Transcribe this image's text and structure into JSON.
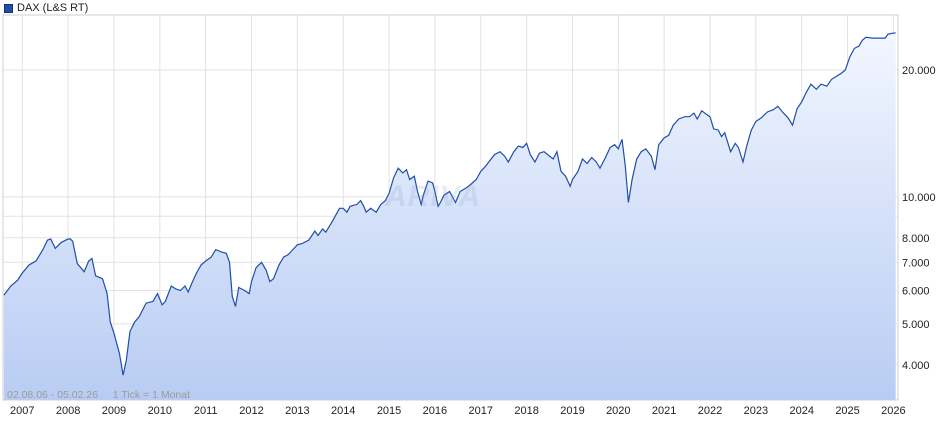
{
  "legend": {
    "label": "DAX (L&S RT)",
    "color": "#1f4fa8"
  },
  "footer": {
    "range_text": "02.08.06 - 05.02.26",
    "tick_text": "1 Tick = 1 Monat"
  },
  "watermark": "ARIVA",
  "colors": {
    "line": "#1f4fa8",
    "fill_top": "#f2f6ff",
    "fill_bottom": "#b8ccf3",
    "grid": "#e2e2e2"
  },
  "chart_data": {
    "type": "area",
    "scale": "log",
    "grid": true,
    "legend_position": "top-left",
    "x_ticks": [
      "2007",
      "2008",
      "2009",
      "2010",
      "2011",
      "2012",
      "2013",
      "2014",
      "2015",
      "2016",
      "2017",
      "2018",
      "2019",
      "2020",
      "2021",
      "2022",
      "2023",
      "2024",
      "2025",
      "2026"
    ],
    "y_ticks": [
      {
        "value": 4000,
        "label": "4.000"
      },
      {
        "value": 5000,
        "label": "5.000"
      },
      {
        "value": 6000,
        "label": "6.000"
      },
      {
        "value": 7000,
        "label": "7.000"
      },
      {
        "value": 8000,
        "label": "8.000"
      },
      {
        "value": 9000,
        "label": ""
      },
      {
        "value": 10000,
        "label": "10.000"
      },
      {
        "value": 20000,
        "label": "20.000"
      }
    ],
    "ylim": [
      3300,
      27000
    ],
    "xlim": [
      2006.58,
      2026.1
    ],
    "series": [
      {
        "name": "DAX (L&S RT)",
        "points": [
          [
            2006.6,
            5850
          ],
          [
            2006.75,
            6150
          ],
          [
            2006.9,
            6350
          ],
          [
            2007.0,
            6600
          ],
          [
            2007.15,
            6900
          ],
          [
            2007.3,
            7050
          ],
          [
            2007.45,
            7500
          ],
          [
            2007.55,
            7900
          ],
          [
            2007.62,
            7950
          ],
          [
            2007.72,
            7550
          ],
          [
            2007.85,
            7800
          ],
          [
            2008.0,
            7950
          ],
          [
            2008.05,
            7950
          ],
          [
            2008.1,
            7850
          ],
          [
            2008.2,
            6950
          ],
          [
            2008.35,
            6650
          ],
          [
            2008.45,
            7050
          ],
          [
            2008.52,
            7150
          ],
          [
            2008.6,
            6500
          ],
          [
            2008.75,
            6400
          ],
          [
            2008.85,
            5900
          ],
          [
            2008.92,
            5050
          ],
          [
            2009.0,
            4750
          ],
          [
            2009.12,
            4250
          ],
          [
            2009.2,
            3780
          ],
          [
            2009.27,
            4100
          ],
          [
            2009.35,
            4800
          ],
          [
            2009.45,
            5050
          ],
          [
            2009.55,
            5200
          ],
          [
            2009.7,
            5600
          ],
          [
            2009.85,
            5650
          ],
          [
            2009.95,
            5900
          ],
          [
            2010.05,
            5550
          ],
          [
            2010.12,
            5650
          ],
          [
            2010.25,
            6150
          ],
          [
            2010.35,
            6050
          ],
          [
            2010.45,
            6000
          ],
          [
            2010.55,
            6150
          ],
          [
            2010.62,
            5950
          ],
          [
            2010.7,
            6250
          ],
          [
            2010.8,
            6600
          ],
          [
            2010.9,
            6900
          ],
          [
            2011.0,
            7050
          ],
          [
            2011.12,
            7200
          ],
          [
            2011.22,
            7500
          ],
          [
            2011.35,
            7400
          ],
          [
            2011.45,
            7350
          ],
          [
            2011.52,
            7000
          ],
          [
            2011.58,
            5800
          ],
          [
            2011.65,
            5500
          ],
          [
            2011.72,
            6100
          ],
          [
            2011.85,
            6000
          ],
          [
            2011.95,
            5900
          ],
          [
            2012.0,
            6300
          ],
          [
            2012.1,
            6800
          ],
          [
            2012.22,
            7000
          ],
          [
            2012.32,
            6700
          ],
          [
            2012.4,
            6300
          ],
          [
            2012.48,
            6400
          ],
          [
            2012.6,
            6900
          ],
          [
            2012.7,
            7200
          ],
          [
            2012.8,
            7300
          ],
          [
            2012.9,
            7500
          ],
          [
            2013.0,
            7700
          ],
          [
            2013.1,
            7750
          ],
          [
            2013.25,
            7900
          ],
          [
            2013.38,
            8300
          ],
          [
            2013.45,
            8100
          ],
          [
            2013.55,
            8400
          ],
          [
            2013.62,
            8250
          ],
          [
            2013.75,
            8700
          ],
          [
            2013.85,
            9100
          ],
          [
            2013.92,
            9400
          ],
          [
            2014.0,
            9400
          ],
          [
            2014.08,
            9200
          ],
          [
            2014.15,
            9500
          ],
          [
            2014.3,
            9600
          ],
          [
            2014.38,
            9800
          ],
          [
            2014.45,
            9500
          ],
          [
            2014.5,
            9200
          ],
          [
            2014.6,
            9400
          ],
          [
            2014.72,
            9200
          ],
          [
            2014.82,
            9600
          ],
          [
            2014.92,
            9800
          ],
          [
            2015.0,
            10200
          ],
          [
            2015.1,
            11100
          ],
          [
            2015.2,
            11700
          ],
          [
            2015.3,
            11400
          ],
          [
            2015.38,
            11600
          ],
          [
            2015.45,
            11000
          ],
          [
            2015.55,
            11200
          ],
          [
            2015.62,
            10300
          ],
          [
            2015.7,
            9600
          ],
          [
            2015.75,
            10100
          ],
          [
            2015.85,
            10900
          ],
          [
            2015.95,
            10800
          ],
          [
            2016.0,
            10300
          ],
          [
            2016.07,
            9500
          ],
          [
            2016.12,
            9700
          ],
          [
            2016.2,
            10100
          ],
          [
            2016.32,
            10300
          ],
          [
            2016.45,
            9700
          ],
          [
            2016.55,
            10300
          ],
          [
            2016.68,
            10500
          ],
          [
            2016.78,
            10700
          ],
          [
            2016.9,
            11000
          ],
          [
            2017.0,
            11500
          ],
          [
            2017.1,
            11800
          ],
          [
            2017.2,
            12200
          ],
          [
            2017.3,
            12600
          ],
          [
            2017.42,
            12800
          ],
          [
            2017.52,
            12500
          ],
          [
            2017.6,
            12100
          ],
          [
            2017.72,
            12800
          ],
          [
            2017.82,
            13200
          ],
          [
            2017.92,
            13100
          ],
          [
            2018.0,
            13400
          ],
          [
            2018.08,
            12600
          ],
          [
            2018.18,
            12100
          ],
          [
            2018.28,
            12700
          ],
          [
            2018.38,
            12800
          ],
          [
            2018.5,
            12500
          ],
          [
            2018.58,
            12300
          ],
          [
            2018.66,
            12800
          ],
          [
            2018.75,
            11500
          ],
          [
            2018.85,
            11200
          ],
          [
            2018.95,
            10600
          ],
          [
            2019.0,
            11000
          ],
          [
            2019.12,
            11500
          ],
          [
            2019.22,
            12300
          ],
          [
            2019.32,
            12000
          ],
          [
            2019.42,
            12400
          ],
          [
            2019.52,
            12100
          ],
          [
            2019.6,
            11700
          ],
          [
            2019.72,
            12400
          ],
          [
            2019.82,
            13100
          ],
          [
            2019.92,
            13300
          ],
          [
            2020.0,
            13000
          ],
          [
            2020.08,
            13700
          ],
          [
            2020.15,
            11900
          ],
          [
            2020.22,
            9700
          ],
          [
            2020.3,
            11000
          ],
          [
            2020.4,
            12300
          ],
          [
            2020.5,
            12800
          ],
          [
            2020.6,
            13000
          ],
          [
            2020.72,
            12500
          ],
          [
            2020.8,
            11600
          ],
          [
            2020.88,
            13300
          ],
          [
            2021.0,
            13800
          ],
          [
            2021.1,
            14000
          ],
          [
            2021.2,
            14800
          ],
          [
            2021.32,
            15300
          ],
          [
            2021.45,
            15500
          ],
          [
            2021.55,
            15500
          ],
          [
            2021.65,
            15800
          ],
          [
            2021.72,
            15300
          ],
          [
            2021.82,
            16000
          ],
          [
            2021.92,
            15700
          ],
          [
            2022.0,
            15500
          ],
          [
            2022.08,
            14500
          ],
          [
            2022.18,
            14400
          ],
          [
            2022.25,
            13900
          ],
          [
            2022.32,
            14200
          ],
          [
            2022.45,
            12800
          ],
          [
            2022.55,
            13400
          ],
          [
            2022.62,
            13100
          ],
          [
            2022.72,
            12100
          ],
          [
            2022.8,
            13200
          ],
          [
            2022.9,
            14400
          ],
          [
            2023.0,
            15100
          ],
          [
            2023.12,
            15400
          ],
          [
            2023.25,
            15900
          ],
          [
            2023.38,
            16100
          ],
          [
            2023.48,
            16400
          ],
          [
            2023.58,
            15900
          ],
          [
            2023.7,
            15400
          ],
          [
            2023.8,
            14800
          ],
          [
            2023.9,
            16200
          ],
          [
            2024.0,
            16800
          ],
          [
            2024.1,
            17700
          ],
          [
            2024.2,
            18500
          ],
          [
            2024.32,
            18000
          ],
          [
            2024.42,
            18500
          ],
          [
            2024.55,
            18300
          ],
          [
            2024.65,
            19000
          ],
          [
            2024.75,
            19300
          ],
          [
            2024.85,
            19600
          ],
          [
            2024.95,
            20000
          ],
          [
            2025.05,
            21500
          ],
          [
            2025.15,
            22500
          ],
          [
            2025.25,
            22800
          ],
          [
            2025.32,
            23500
          ],
          [
            2025.4,
            23900
          ],
          [
            2025.55,
            23800
          ],
          [
            2025.7,
            23800
          ],
          [
            2025.82,
            23800
          ],
          [
            2025.88,
            24300
          ],
          [
            2025.95,
            24400
          ],
          [
            2026.05,
            24500
          ]
        ]
      }
    ]
  }
}
